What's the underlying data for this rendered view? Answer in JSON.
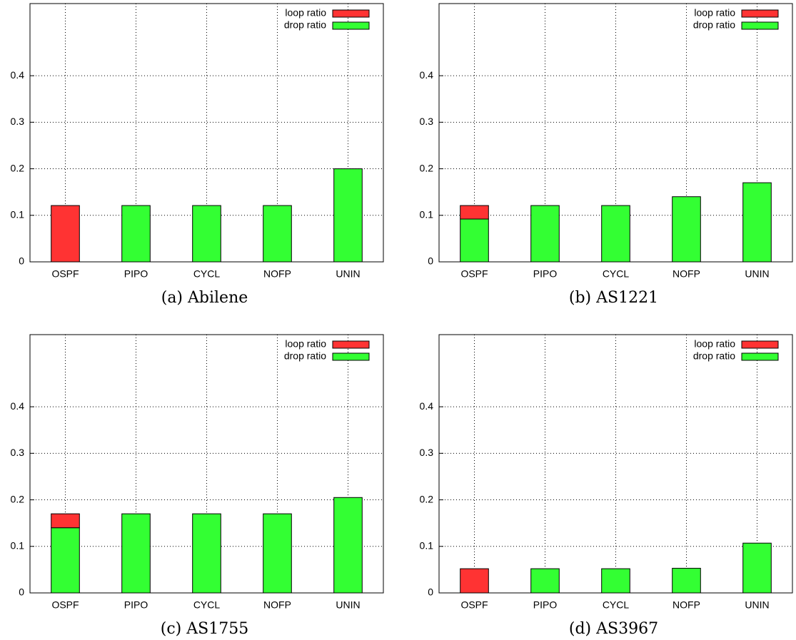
{
  "chart_data": [
    {
      "type": "bar",
      "title": "(a) Abilene",
      "categories": [
        "OSPF",
        "PIPO",
        "CYCL",
        "NOFP",
        "UNIN"
      ],
      "series": [
        {
          "name": "loop ratio",
          "color": "#ff3333",
          "values": [
            0.121,
            0,
            0,
            0,
            0
          ]
        },
        {
          "name": "drop ratio",
          "color": "#33ff33",
          "values": [
            0,
            0.121,
            0.121,
            0.121,
            0.2
          ]
        }
      ],
      "ylim": [
        0,
        0.555
      ],
      "yticks": [
        0,
        0.1,
        0.2,
        0.3,
        0.4
      ],
      "grid": true,
      "stacked": true,
      "legend": "top-right"
    },
    {
      "type": "bar",
      "title": "(b) AS1221",
      "categories": [
        "OSPF",
        "PIPO",
        "CYCL",
        "NOFP",
        "UNIN"
      ],
      "series": [
        {
          "name": "loop ratio",
          "color": "#ff3333",
          "values": [
            0.029,
            0,
            0,
            0,
            0
          ]
        },
        {
          "name": "drop ratio",
          "color": "#33ff33",
          "values": [
            0.092,
            0.121,
            0.121,
            0.14,
            0.17
          ]
        }
      ],
      "ylim": [
        0,
        0.555
      ],
      "yticks": [
        0,
        0.1,
        0.2,
        0.3,
        0.4
      ],
      "grid": true,
      "stacked": true,
      "legend": "top-right"
    },
    {
      "type": "bar",
      "title": "(c) AS1755",
      "categories": [
        "OSPF",
        "PIPO",
        "CYCL",
        "NOFP",
        "UNIN"
      ],
      "series": [
        {
          "name": "loop ratio",
          "color": "#ff3333",
          "values": [
            0.03,
            0,
            0,
            0,
            0
          ]
        },
        {
          "name": "drop ratio",
          "color": "#33ff33",
          "values": [
            0.14,
            0.17,
            0.17,
            0.17,
            0.205
          ]
        }
      ],
      "ylim": [
        0,
        0.555
      ],
      "yticks": [
        0,
        0.1,
        0.2,
        0.3,
        0.4
      ],
      "grid": true,
      "stacked": true,
      "legend": "top-right"
    },
    {
      "type": "bar",
      "title": "(d) AS3967",
      "categories": [
        "OSPF",
        "PIPO",
        "CYCL",
        "NOFP",
        "UNIN"
      ],
      "series": [
        {
          "name": "loop ratio",
          "color": "#ff3333",
          "values": [
            0.052,
            0,
            0,
            0,
            0
          ]
        },
        {
          "name": "drop ratio",
          "color": "#33ff33",
          "values": [
            0,
            0.052,
            0.052,
            0.053,
            0.107
          ]
        }
      ],
      "ylim": [
        0,
        0.555
      ],
      "yticks": [
        0,
        0.1,
        0.2,
        0.3,
        0.4
      ],
      "grid": true,
      "stacked": true,
      "legend": "top-right"
    }
  ]
}
